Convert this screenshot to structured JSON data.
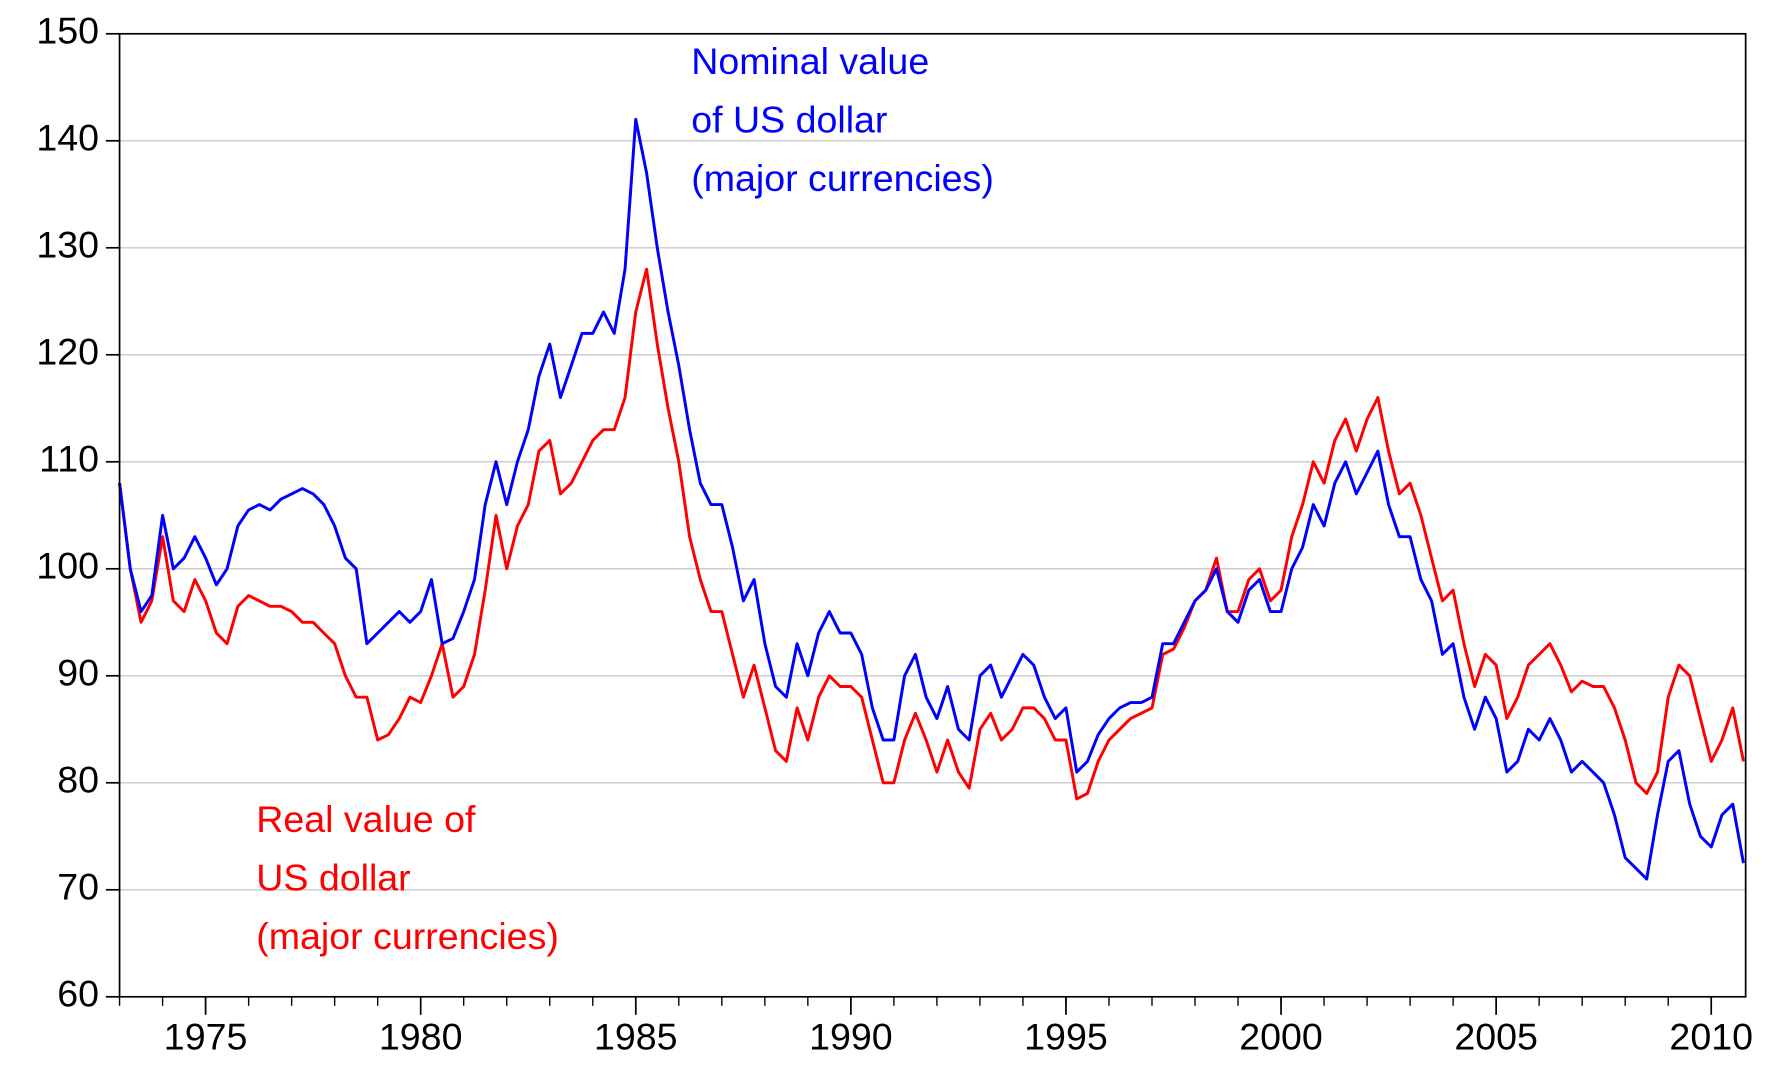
{
  "chart_data": {
    "type": "line",
    "xlim": [
      1973,
      2010.8
    ],
    "xticks": [
      1975,
      1980,
      1985,
      1990,
      1995,
      2000,
      2005,
      2010
    ],
    "ylim": [
      60,
      150
    ],
    "yticks": [
      60,
      70,
      80,
      90,
      100,
      110,
      120,
      130,
      140,
      150
    ],
    "grid": true,
    "x": [
      1973,
      1973.25,
      1973.5,
      1973.75,
      1974,
      1974.25,
      1974.5,
      1974.75,
      1975,
      1975.25,
      1975.5,
      1975.75,
      1976,
      1976.25,
      1976.5,
      1976.75,
      1977,
      1977.25,
      1977.5,
      1977.75,
      1978,
      1978.25,
      1978.5,
      1978.75,
      1979,
      1979.25,
      1979.5,
      1979.75,
      1980,
      1980.25,
      1980.5,
      1980.75,
      1981,
      1981.25,
      1981.5,
      1981.75,
      1982,
      1982.25,
      1982.5,
      1982.75,
      1983,
      1983.25,
      1983.5,
      1983.75,
      1984,
      1984.25,
      1984.5,
      1984.75,
      1985,
      1985.25,
      1985.5,
      1985.75,
      1986,
      1986.25,
      1986.5,
      1986.75,
      1987,
      1987.25,
      1987.5,
      1987.75,
      1988,
      1988.25,
      1988.5,
      1988.75,
      1989,
      1989.25,
      1989.5,
      1989.75,
      1990,
      1990.25,
      1990.5,
      1990.75,
      1991,
      1991.25,
      1991.5,
      1991.75,
      1992,
      1992.25,
      1992.5,
      1992.75,
      1993,
      1993.25,
      1993.5,
      1993.75,
      1994,
      1994.25,
      1994.5,
      1994.75,
      1995,
      1995.25,
      1995.5,
      1995.75,
      1996,
      1996.25,
      1996.5,
      1996.75,
      1997,
      1997.25,
      1997.5,
      1997.75,
      1998,
      1998.25,
      1998.5,
      1998.75,
      1999,
      1999.25,
      1999.5,
      1999.75,
      2000,
      2000.25,
      2000.5,
      2000.75,
      2001,
      2001.25,
      2001.5,
      2001.75,
      2002,
      2002.25,
      2002.5,
      2002.75,
      2003,
      2003.25,
      2003.5,
      2003.75,
      2004,
      2004.25,
      2004.5,
      2004.75,
      2005,
      2005.25,
      2005.5,
      2005.75,
      2006,
      2006.25,
      2006.5,
      2006.75,
      2007,
      2007.25,
      2007.5,
      2007.75,
      2008,
      2008.25,
      2008.5,
      2008.75,
      2009,
      2009.25,
      2009.5,
      2009.75,
      2010,
      2010.25,
      2010.5,
      2010.75
    ],
    "series": [
      {
        "name": "Nominal value of US dollar (major currencies)",
        "color": "#0000ff",
        "values": [
          108,
          100,
          96,
          97.5,
          105,
          100,
          101,
          103,
          101,
          98.5,
          100,
          104,
          105.5,
          106,
          105.5,
          106.5,
          107,
          107.5,
          107,
          106,
          104,
          101,
          100,
          93,
          94,
          95,
          96,
          95,
          96,
          99,
          93,
          93.5,
          96,
          99,
          106,
          110,
          106,
          110,
          113,
          118,
          121,
          116,
          119,
          122,
          122,
          124,
          122,
          128,
          142,
          137,
          130,
          124,
          119,
          113,
          108,
          106,
          106,
          102,
          97,
          99,
          93,
          89,
          88,
          93,
          90,
          94,
          96,
          94,
          94,
          92,
          87,
          84,
          84,
          90,
          92,
          88,
          86,
          89,
          85,
          84,
          90,
          91,
          88,
          90,
          92,
          91,
          88,
          86,
          87,
          81,
          82,
          84.5,
          86,
          87,
          87.5,
          87.5,
          88,
          93,
          93,
          95,
          97,
          98,
          100,
          96,
          95,
          98,
          99,
          96,
          96,
          100,
          102,
          106,
          104,
          108,
          110,
          107,
          109,
          111,
          106,
          103,
          103,
          99,
          97,
          92,
          93,
          88,
          85,
          88,
          86,
          81,
          82,
          85,
          84,
          86,
          84,
          81,
          82,
          81,
          80,
          77,
          73,
          72,
          71,
          77,
          82,
          83,
          78,
          75,
          74,
          77,
          78,
          72.5
        ]
      },
      {
        "name": "Real value of US dollar (major currencies)",
        "color": "#ff0000",
        "values": [
          108,
          100,
          95,
          97,
          103,
          97,
          96,
          99,
          97,
          94,
          93,
          96.5,
          97.5,
          97,
          96.5,
          96.5,
          96,
          95,
          95,
          94,
          93,
          90,
          88,
          88,
          84,
          84.5,
          86,
          88,
          87.5,
          90,
          93,
          88,
          89,
          92,
          98,
          105,
          100,
          104,
          106,
          111,
          112,
          107,
          108,
          110,
          112,
          113,
          113,
          116,
          124,
          128,
          121,
          115,
          110,
          103,
          99,
          96,
          96,
          92,
          88,
          91,
          87,
          83,
          82,
          87,
          84,
          88,
          90,
          89,
          89,
          88,
          84,
          80,
          80,
          84,
          86.5,
          84,
          81,
          84,
          81,
          79.5,
          85,
          86.5,
          84,
          85,
          87,
          87,
          86,
          84,
          84,
          78.5,
          79,
          82,
          84,
          85,
          86,
          86.5,
          87,
          92,
          92.5,
          94.5,
          97,
          98,
          101,
          96,
          96,
          99,
          100,
          97,
          98,
          103,
          106,
          110,
          108,
          112,
          114,
          111,
          114,
          116,
          111,
          107,
          108,
          105,
          101,
          97,
          98,
          93,
          89,
          92,
          91,
          86,
          88,
          91,
          92,
          93,
          91,
          88.5,
          89.5,
          89,
          89,
          87,
          84,
          80,
          79,
          81,
          88,
          91,
          90,
          86,
          82,
          84,
          87,
          82
        ]
      }
    ],
    "annotations": [
      {
        "lines": [
          "Nominal value",
          "of US dollar",
          "(major currencies)"
        ],
        "series": 0
      },
      {
        "lines": [
          "Real value of",
          "US dollar",
          "(major currencies)"
        ],
        "series": 1
      }
    ]
  }
}
